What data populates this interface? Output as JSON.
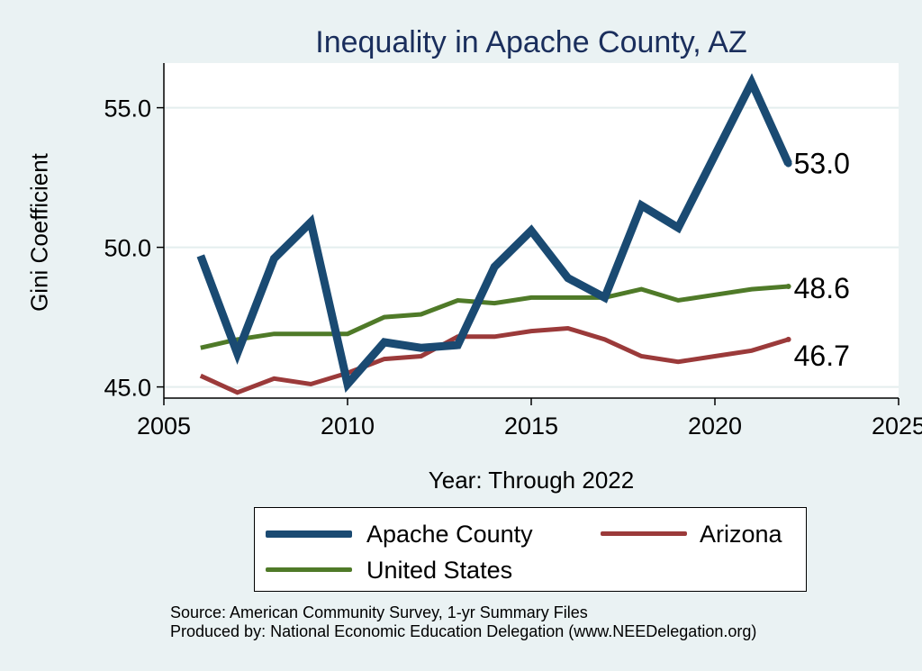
{
  "chart_data": {
    "type": "line",
    "title": "Inequality in Apache County, AZ",
    "xlabel": "Year: Through 2022",
    "ylabel": "Gini Coefficient",
    "xlim": [
      2005,
      2025
    ],
    "ylim": [
      44.6,
      56.6
    ],
    "x_ticks": [
      "2005",
      "2010",
      "2015",
      "2020",
      "2025"
    ],
    "y_ticks": [
      "45.0",
      "50.0",
      "55.0"
    ],
    "x": [
      2006,
      2007,
      2008,
      2009,
      2010,
      2011,
      2012,
      2013,
      2014,
      2015,
      2016,
      2017,
      2018,
      2019,
      2020,
      2021,
      2022
    ],
    "series": [
      {
        "name": "Apache County",
        "color": "#1a4a72",
        "values": [
          49.7,
          46.2,
          49.6,
          50.9,
          45.1,
          46.6,
          46.4,
          46.5,
          49.3,
          50.6,
          48.9,
          48.2,
          51.5,
          50.7,
          53.3,
          55.9,
          53.0
        ],
        "end_label": "53.0"
      },
      {
        "name": "Arizona",
        "color": "#9b3a3a",
        "values": [
          45.4,
          44.8,
          45.3,
          45.1,
          45.5,
          46.0,
          46.1,
          46.8,
          46.8,
          47.0,
          47.1,
          46.7,
          46.1,
          45.9,
          46.1,
          46.3,
          46.7
        ],
        "end_label": "46.7"
      },
      {
        "name": "United States",
        "color": "#4f7a28",
        "values": [
          46.4,
          46.7,
          46.9,
          46.9,
          46.9,
          47.5,
          47.6,
          48.1,
          48.0,
          48.2,
          48.2,
          48.2,
          48.5,
          48.1,
          48.3,
          48.5,
          48.6
        ],
        "end_label": "48.6"
      }
    ],
    "grid": "horizontal",
    "legend": "bottom"
  },
  "source": {
    "line1": "Source: American Community Survey, 1-yr Summary Files",
    "line2": "Produced by: National Economic Education Delegation (www.NEEDelegation.org)"
  }
}
